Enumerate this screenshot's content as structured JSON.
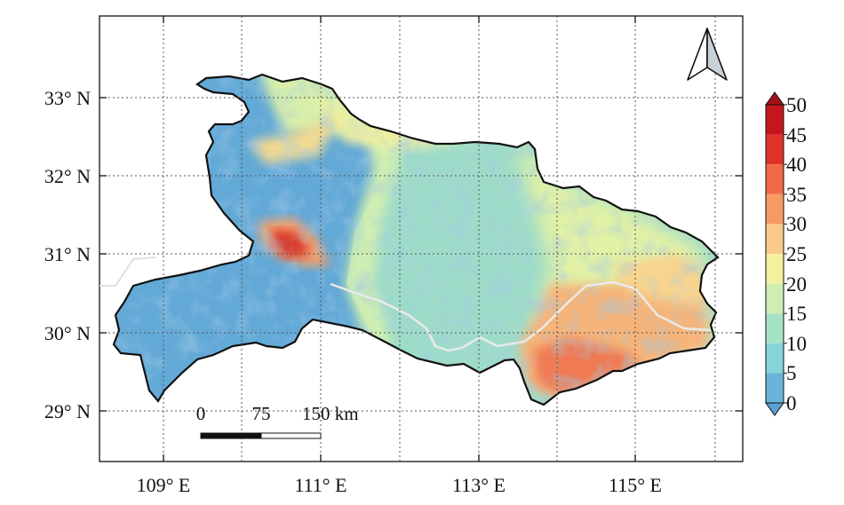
{
  "map": {
    "lat_labels": [
      "33° N",
      "32° N",
      "31° N",
      "30° N",
      "29° N"
    ],
    "lon_labels": [
      "109° E",
      "111° E",
      "113° E",
      "115° E"
    ],
    "scale_bar": {
      "labels": [
        "0",
        "75",
        "150 km"
      ]
    },
    "colorbar": {
      "ticks": [
        "50",
        "45",
        "40",
        "35",
        "30",
        "25",
        "20",
        "15",
        "10",
        "5",
        "0"
      ],
      "colors": [
        "#c4161c",
        "#e0322b",
        "#f06a48",
        "#f59a63",
        "#f8c98a",
        "#f5f0a0",
        "#cfeeb2",
        "#a6e3c6",
        "#86d4d8",
        "#6ab3d9"
      ],
      "extend_max_color": "#a50f15",
      "extend_min_color": "#5b9fd3"
    },
    "north_arrow": "north-arrow-icon",
    "gridlines": true
  }
}
